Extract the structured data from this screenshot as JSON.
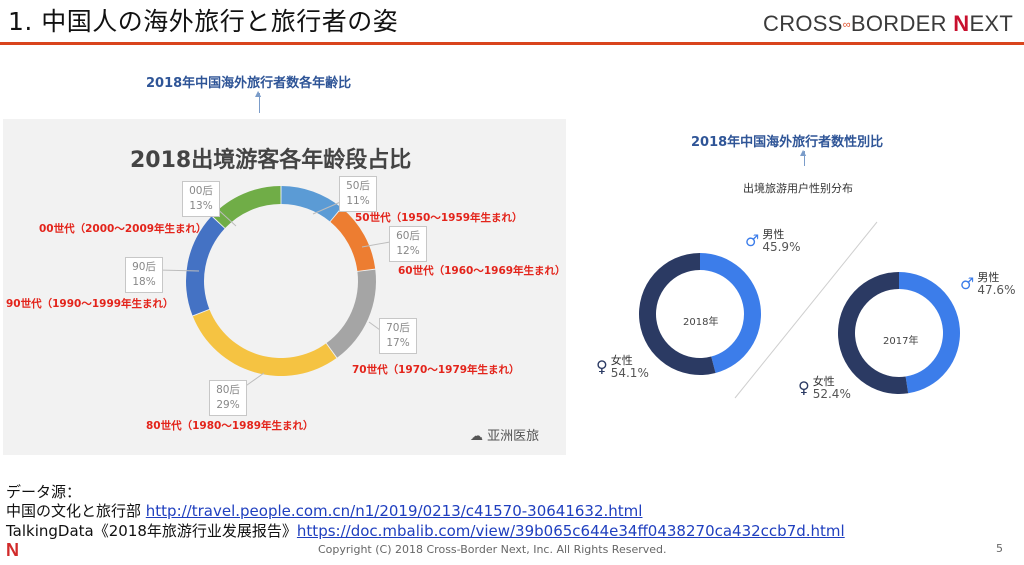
{
  "slide": {
    "title": "1. 中国人の海外旅行と旅行者の姿",
    "brand_prefix": "CROSS",
    "brand_mid": "BORDER ",
    "brand_n": "N",
    "brand_suffix": "EXT",
    "page_number": "5",
    "copyright": "Copyright (C) 2018 Cross-Border Next, Inc. All Rights Reserved.",
    "corner_logo": "N"
  },
  "left_section": {
    "caption": "2018年中国海外旅行者数各年齢比",
    "watermark": "亚洲医旅"
  },
  "right_section": {
    "caption": "2018年中国海外旅行者数性別比",
    "sub_caption": "出境旅游用户性别分布"
  },
  "sources": {
    "label": "データ源：",
    "line1_prefix": "中国の文化と旅行部 ",
    "line1_link": "http://travel.people.com.cn/n1/2019/0213/c41570-30641632.html",
    "line2_prefix": "TalkingData《2018年旅游行业发展报告》",
    "line2_link": "https://doc.mbalib.com/view/39b065c644e34ff0438270ca432ccb7d.html"
  },
  "colors": {
    "accent": "#d9441c",
    "caption_blue": "#2f5597",
    "label_red": "#e3241b",
    "male": "#3c7dea",
    "female": "#2b3a63"
  },
  "chart_data": [
    {
      "type": "pie",
      "title": "2018出境游客各年龄段占比",
      "categories": [
        "50后",
        "60后",
        "70后",
        "80后",
        "90后",
        "00后"
      ],
      "values": [
        11,
        12,
        17,
        29,
        18,
        13
      ],
      "value_labels": [
        "11%",
        "12%",
        "17%",
        "29%",
        "18%",
        "13%"
      ],
      "annotations": [
        "50世代（1950～1959年生まれ）",
        "60世代（1960～1969年生まれ）",
        "70世代（1970～1979年生まれ）",
        "80世代（1980～1989年生まれ）",
        "90世代（1990～1999年生まれ）",
        "00世代（2000～2009年生まれ）"
      ],
      "colors": [
        "#5b9bd5",
        "#ed7d31",
        "#a5a5a5",
        "#f5c342",
        "#4472c4",
        "#70ad47"
      ]
    },
    {
      "type": "pie",
      "title": "2018年",
      "categories": [
        "男性",
        "女性"
      ],
      "values": [
        45.9,
        54.1
      ],
      "value_labels": [
        "45.9%",
        "54.1%"
      ],
      "colors": [
        "#3c7dea",
        "#2b3a63"
      ]
    },
    {
      "type": "pie",
      "title": "2017年",
      "categories": [
        "男性",
        "女性"
      ],
      "values": [
        47.6,
        52.4
      ],
      "value_labels": [
        "47.6%",
        "52.4%"
      ],
      "colors": [
        "#3c7dea",
        "#2b3a63"
      ]
    }
  ]
}
